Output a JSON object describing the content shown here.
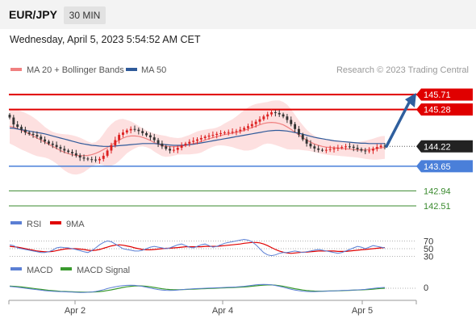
{
  "header": {
    "symbol": "EUR/JPY",
    "timeframe": "30 MIN",
    "datetime": "Wednesday, April 5, 2023 5:54:52 AM CET"
  },
  "legend": {
    "ma20_label": "MA 20 + Bollinger Bands",
    "ma50_label": "MA 50",
    "credit": "Research © 2023 Trading Central"
  },
  "colors": {
    "resistance": "#e00000",
    "support": "#4a7fd9",
    "target": "#3a8a2e",
    "ma20": "#f08080",
    "ma50": "#2f5a9a",
    "bollinger_fill": "#fde0e0",
    "arrow": "#2f5f9e",
    "candle_up": "#dd2222",
    "candle_down": "#333333",
    "rsi": "#5b7fd4",
    "rsi_ma": "#e00000",
    "macd": "#5b7fd4",
    "macd_signal": "#3a9a2e"
  },
  "chart_data": [
    {
      "type": "candlestick",
      "ylim": [
        142.3,
        146.2
      ],
      "x_ticks": [
        "Apr 2",
        "Apr 4",
        "Apr 5"
      ],
      "current_price": 144.22,
      "levels": [
        {
          "value": 145.71,
          "label": "145.71",
          "kind": "resistance"
        },
        {
          "value": 145.28,
          "label": "145.28",
          "kind": "resistance"
        },
        {
          "value": 144.22,
          "label": "144.22",
          "kind": "current"
        },
        {
          "value": 143.65,
          "label": "143.65",
          "kind": "support"
        },
        {
          "value": 142.94,
          "label": "142.94",
          "kind": "target"
        },
        {
          "value": 142.51,
          "label": "142.51",
          "kind": "target"
        }
      ],
      "close": [
        145.05,
        144.85,
        144.78,
        144.7,
        144.62,
        144.58,
        144.55,
        144.5,
        144.42,
        144.36,
        144.3,
        144.26,
        144.2,
        144.15,
        144.1,
        144.06,
        144.02,
        143.96,
        143.9,
        143.87,
        143.85,
        143.84,
        143.82,
        143.86,
        143.95,
        144.1,
        144.25,
        144.4,
        144.55,
        144.62,
        144.68,
        144.72,
        144.7,
        144.66,
        144.6,
        144.54,
        144.48,
        144.4,
        144.3,
        144.22,
        144.15,
        144.1,
        144.12,
        144.18,
        144.25,
        144.3,
        144.35,
        144.38,
        144.42,
        144.46,
        144.5,
        144.53,
        144.55,
        144.58,
        144.6,
        144.62,
        144.63,
        144.64,
        144.66,
        144.7,
        144.75,
        144.8,
        144.86,
        144.93,
        145.0,
        145.08,
        145.14,
        145.2,
        145.18,
        145.14,
        145.08,
        144.98,
        144.86,
        144.72,
        144.56,
        144.42,
        144.3,
        144.22,
        144.16,
        144.12,
        144.11,
        144.12,
        144.14,
        144.16,
        144.18,
        144.2,
        144.22,
        144.21,
        144.18,
        144.14,
        144.1,
        144.08,
        144.1,
        144.15,
        144.2,
        144.24,
        144.22
      ],
      "ma20": [
        144.8,
        144.77,
        144.73,
        144.68,
        144.63,
        144.58,
        144.52,
        144.46,
        144.4,
        144.34,
        144.28,
        144.22,
        144.16,
        144.1,
        144.05,
        144.01,
        143.98,
        143.96,
        143.95,
        143.95,
        143.96,
        143.98,
        144.02,
        144.07,
        144.13,
        144.19,
        144.26,
        144.33,
        144.4,
        144.46,
        144.5,
        144.52,
        144.52,
        144.51,
        144.48,
        144.44,
        144.39,
        144.33,
        144.28,
        144.24,
        144.22,
        144.21,
        144.21,
        144.22,
        144.23,
        144.25,
        144.27,
        144.3,
        144.33,
        144.36,
        144.4,
        144.44,
        144.47,
        144.5,
        144.53,
        144.56,
        144.58,
        144.6,
        144.62,
        144.65,
        144.68,
        144.72,
        144.76,
        144.8,
        144.84,
        144.88,
        144.9,
        144.91,
        144.9,
        144.88,
        144.84,
        144.78,
        144.71,
        144.63,
        144.55,
        144.47,
        144.4,
        144.34,
        144.29,
        144.25,
        144.22,
        144.2,
        144.19,
        144.18,
        144.17,
        144.16,
        144.15,
        144.14,
        144.13,
        144.12,
        144.12,
        144.12,
        144.13,
        144.14,
        144.16,
        144.18,
        144.19
      ],
      "ma50": [
        144.75,
        144.74,
        144.72,
        144.7,
        144.68,
        144.66,
        144.64,
        144.62,
        144.6,
        144.58,
        144.55,
        144.52,
        144.49,
        144.46,
        144.43,
        144.4,
        144.37,
        144.34,
        144.31,
        144.29,
        144.27,
        144.25,
        144.24,
        144.23,
        144.22,
        144.22,
        144.22,
        144.23,
        144.24,
        144.25,
        144.26,
        144.27,
        144.28,
        144.29,
        144.3,
        144.3,
        144.3,
        144.3,
        144.29,
        144.28,
        144.27,
        144.26,
        144.25,
        144.25,
        144.25,
        144.26,
        144.27,
        144.28,
        144.3,
        144.32,
        144.34,
        144.36,
        144.38,
        144.4,
        144.42,
        144.44,
        144.46,
        144.48,
        144.5,
        144.52,
        144.54,
        144.56,
        144.58,
        144.6,
        144.62,
        144.64,
        144.66,
        144.67,
        144.68,
        144.68,
        144.67,
        144.66,
        144.64,
        144.62,
        144.6,
        144.57,
        144.54,
        144.51,
        144.48,
        144.46,
        144.44,
        144.42,
        144.4,
        144.38,
        144.37,
        144.36,
        144.35,
        144.34,
        144.33,
        144.32,
        144.31,
        144.31,
        144.3,
        144.3,
        144.3,
        144.3,
        144.3
      ],
      "bollinger_width": [
        0.5,
        0.52,
        0.54,
        0.55,
        0.55,
        0.55,
        0.54,
        0.52,
        0.48,
        0.44,
        0.42,
        0.42,
        0.44,
        0.48,
        0.52,
        0.55,
        0.56,
        0.55,
        0.52,
        0.47,
        0.4,
        0.34,
        0.32,
        0.36,
        0.45,
        0.55,
        0.6,
        0.62,
        0.6,
        0.55,
        0.48,
        0.42,
        0.36,
        0.3,
        0.26,
        0.24,
        0.24,
        0.26,
        0.28,
        0.3,
        0.3,
        0.28,
        0.26,
        0.24,
        0.24,
        0.26,
        0.28,
        0.3,
        0.32,
        0.32,
        0.3,
        0.28,
        0.26,
        0.26,
        0.28,
        0.32,
        0.36,
        0.4,
        0.46,
        0.52,
        0.58,
        0.62,
        0.64,
        0.64,
        0.62,
        0.6,
        0.6,
        0.62,
        0.64,
        0.66,
        0.66,
        0.64,
        0.58,
        0.5,
        0.42,
        0.36,
        0.3,
        0.26,
        0.24,
        0.22,
        0.22,
        0.22,
        0.22,
        0.22,
        0.22,
        0.22,
        0.22,
        0.22,
        0.22,
        0.22,
        0.24,
        0.26,
        0.28,
        0.3,
        0.32,
        0.33,
        0.33
      ],
      "projection": {
        "from": 144.22,
        "to": 145.71
      }
    },
    {
      "type": "line",
      "name": "RSI",
      "legend": [
        "RSI",
        "9MA"
      ],
      "levels": [
        70,
        50,
        30
      ],
      "ylim": [
        0,
        100
      ],
      "rsi": [
        60,
        58,
        52,
        50,
        48,
        46,
        44,
        42,
        40,
        40,
        42,
        46,
        52,
        54,
        53,
        52,
        50,
        48,
        45,
        42,
        40,
        45,
        52,
        60,
        66,
        70,
        68,
        62,
        56,
        50,
        48,
        46,
        44,
        44,
        46,
        50,
        54,
        56,
        54,
        52,
        50,
        52,
        56,
        60,
        62,
        58,
        54,
        52,
        56,
        60,
        62,
        58,
        54,
        56,
        60,
        64,
        66,
        68,
        70,
        72,
        74,
        72,
        68,
        60,
        50,
        40,
        34,
        32,
        34,
        38,
        40,
        40,
        42,
        44,
        42,
        40,
        42,
        44,
        46,
        48,
        46,
        44,
        42,
        40,
        38,
        40,
        44,
        48,
        52,
        56,
        54,
        50,
        54,
        58,
        56,
        54,
        52
      ],
      "rsi_ma": [
        56,
        55,
        54,
        52,
        50,
        48,
        46,
        44,
        43,
        42,
        42,
        43,
        45,
        47,
        49,
        50,
        50,
        50,
        49,
        48,
        46,
        45,
        46,
        48,
        51,
        54,
        57,
        59,
        60,
        59,
        57,
        55,
        52,
        50,
        48,
        47,
        47,
        48,
        49,
        50,
        51,
        51,
        52,
        53,
        54,
        55,
        55,
        55,
        55,
        55,
        56,
        56,
        56,
        56,
        57,
        58,
        59,
        60,
        61,
        62,
        64,
        65,
        66,
        66,
        65,
        62,
        58,
        53,
        48,
        44,
        41,
        39,
        38,
        39,
        40,
        41,
        41,
        42,
        43,
        44,
        44,
        44,
        44,
        44,
        43,
        43,
        43,
        44,
        45,
        46,
        47,
        48,
        49,
        50,
        51,
        52,
        53
      ]
    },
    {
      "type": "line",
      "name": "MACD",
      "legend": [
        "MACD",
        "MACD Signal"
      ],
      "levels": [
        0
      ],
      "level_labels": [
        "0"
      ],
      "ylim": [
        -1,
        1
      ],
      "macd": [
        0.22,
        0.18,
        0.12,
        0.06,
        0.0,
        -0.06,
        -0.12,
        -0.18,
        -0.24,
        -0.3,
        -0.34,
        -0.38,
        -0.4,
        -0.42,
        -0.44,
        -0.46,
        -0.48,
        -0.5,
        -0.52,
        -0.52,
        -0.5,
        -0.46,
        -0.4,
        -0.3,
        -0.18,
        -0.04,
        0.08,
        0.18,
        0.26,
        0.32,
        0.36,
        0.38,
        0.36,
        0.3,
        0.22,
        0.12,
        0.02,
        -0.08,
        -0.16,
        -0.22,
        -0.26,
        -0.28,
        -0.26,
        -0.22,
        -0.18,
        -0.14,
        -0.1,
        -0.06,
        -0.04,
        -0.02,
        0.0,
        0.02,
        0.04,
        0.06,
        0.08,
        0.1,
        0.12,
        0.14,
        0.16,
        0.2,
        0.24,
        0.3,
        0.36,
        0.42,
        0.46,
        0.48,
        0.46,
        0.42,
        0.34,
        0.24,
        0.12,
        0.0,
        -0.12,
        -0.22,
        -0.3,
        -0.36,
        -0.4,
        -0.42,
        -0.42,
        -0.4,
        -0.38,
        -0.36,
        -0.34,
        -0.32,
        -0.3,
        -0.28,
        -0.26,
        -0.24,
        -0.22,
        -0.2,
        -0.18,
        -0.14,
        -0.08,
        -0.02,
        0.04,
        0.08,
        0.1
      ],
      "macd_signal": [
        0.26,
        0.24,
        0.2,
        0.16,
        0.1,
        0.04,
        -0.02,
        -0.08,
        -0.14,
        -0.2,
        -0.26,
        -0.3,
        -0.34,
        -0.38,
        -0.4,
        -0.42,
        -0.44,
        -0.46,
        -0.47,
        -0.48,
        -0.48,
        -0.47,
        -0.45,
        -0.41,
        -0.36,
        -0.28,
        -0.2,
        -0.1,
        0.0,
        0.1,
        0.18,
        0.24,
        0.28,
        0.3,
        0.28,
        0.24,
        0.18,
        0.1,
        0.02,
        -0.06,
        -0.12,
        -0.16,
        -0.18,
        -0.18,
        -0.17,
        -0.15,
        -0.13,
        -0.11,
        -0.09,
        -0.07,
        -0.05,
        -0.03,
        -0.01,
        0.01,
        0.03,
        0.05,
        0.07,
        0.09,
        0.11,
        0.13,
        0.16,
        0.2,
        0.25,
        0.3,
        0.35,
        0.39,
        0.41,
        0.41,
        0.38,
        0.32,
        0.24,
        0.14,
        0.04,
        -0.06,
        -0.14,
        -0.22,
        -0.28,
        -0.32,
        -0.35,
        -0.36,
        -0.36,
        -0.35,
        -0.34,
        -0.33,
        -0.32,
        -0.3,
        -0.28,
        -0.26,
        -0.24,
        -0.22,
        -0.2,
        -0.18,
        -0.15,
        -0.11,
        -0.07,
        -0.03,
        0.0
      ]
    }
  ]
}
